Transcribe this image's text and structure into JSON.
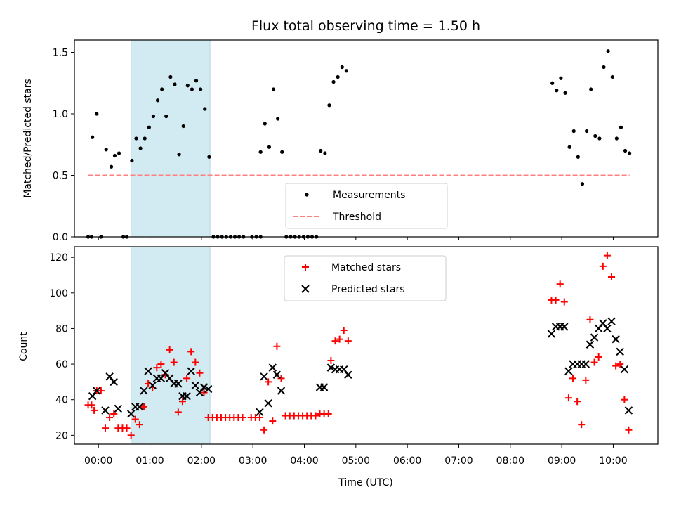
{
  "chart_data": [
    {
      "type": "scatter",
      "title": "Flux total observing time = 1.50 h",
      "xlabel": "",
      "ylabel": "Matched/Predicted stars",
      "xlim": [
        "23:32",
        "10:52"
      ],
      "ylim": [
        0,
        1.6
      ],
      "yticks": [
        "0.0",
        "0.5",
        "1.0",
        "1.5"
      ],
      "highlight_interval": [
        "00:38",
        "02:10"
      ],
      "highlight_color": "#add8e6",
      "legend_position": "lower-center",
      "series": [
        {
          "name": "Measurements",
          "marker": "dot",
          "color": "#000000",
          "points": [
            [
              "23:48",
              0
            ],
            [
              "23:52",
              0
            ],
            [
              "23:53",
              0.81
            ],
            [
              "23:58",
              1.0
            ],
            [
              "00:03",
              0
            ],
            [
              "00:09",
              0.71
            ],
            [
              "00:15",
              0.57
            ],
            [
              "00:19",
              0.66
            ],
            [
              "00:24",
              0.68
            ],
            [
              "00:29",
              0
            ],
            [
              "00:33",
              0
            ],
            [
              "00:39",
              0.62
            ],
            [
              "00:44",
              0.8
            ],
            [
              "00:49",
              0.72
            ],
            [
              "00:54",
              0.8
            ],
            [
              "00:59",
              0.89
            ],
            [
              "01:04",
              0.98
            ],
            [
              "01:09",
              1.11
            ],
            [
              "01:14",
              1.2
            ],
            [
              "01:19",
              0.98
            ],
            [
              "01:24",
              1.3
            ],
            [
              "01:29",
              1.24
            ],
            [
              "01:34",
              0.67
            ],
            [
              "01:39",
              0.9
            ],
            [
              "01:44",
              1.23
            ],
            [
              "01:49",
              1.2
            ],
            [
              "01:54",
              1.27
            ],
            [
              "01:59",
              1.2
            ],
            [
              "02:04",
              1.04
            ],
            [
              "02:09",
              0.65
            ],
            [
              "02:14",
              0
            ],
            [
              "02:19",
              0
            ],
            [
              "02:24",
              0
            ],
            [
              "02:29",
              0
            ],
            [
              "02:34",
              0
            ],
            [
              "02:39",
              0
            ],
            [
              "02:44",
              0
            ],
            [
              "02:49",
              0
            ],
            [
              "02:59",
              0
            ],
            [
              "03:04",
              0
            ],
            [
              "03:09",
              0
            ],
            [
              "03:09",
              0.69
            ],
            [
              "03:14",
              0.92
            ],
            [
              "03:19",
              0.73
            ],
            [
              "03:24",
              1.2
            ],
            [
              "03:29",
              0.96
            ],
            [
              "03:34",
              0.69
            ],
            [
              "03:39",
              0
            ],
            [
              "03:44",
              0
            ],
            [
              "03:49",
              0
            ],
            [
              "03:54",
              0
            ],
            [
              "03:59",
              0
            ],
            [
              "04:04",
              0
            ],
            [
              "04:09",
              0
            ],
            [
              "04:14",
              0
            ],
            [
              "04:19",
              0.7
            ],
            [
              "04:24",
              0.68
            ],
            [
              "04:29",
              1.07
            ],
            [
              "04:34",
              1.26
            ],
            [
              "04:39",
              1.3
            ],
            [
              "04:44",
              1.38
            ],
            [
              "04:49",
              1.35
            ],
            [
              "08:49",
              1.25
            ],
            [
              "08:54",
              1.19
            ],
            [
              "08:59",
              1.29
            ],
            [
              "09:04",
              1.17
            ],
            [
              "09:09",
              0.73
            ],
            [
              "09:14",
              0.86
            ],
            [
              "09:19",
              0.65
            ],
            [
              "09:24",
              0.43
            ],
            [
              "09:29",
              0.86
            ],
            [
              "09:34",
              1.2
            ],
            [
              "09:39",
              0.82
            ],
            [
              "09:44",
              0.8
            ],
            [
              "09:49",
              1.38
            ],
            [
              "09:54",
              1.51
            ],
            [
              "09:59",
              1.3
            ],
            [
              "10:04",
              0.8
            ],
            [
              "10:09",
              0.89
            ],
            [
              "10:14",
              0.7
            ],
            [
              "10:19",
              0.68
            ]
          ]
        },
        {
          "name": "Threshold",
          "marker": "dashed-line",
          "color": "#ff8080",
          "points": [
            [
              "23:48",
              0.5
            ],
            [
              "10:19",
              0.5
            ]
          ]
        }
      ]
    },
    {
      "type": "scatter",
      "title": "",
      "xlabel": "Time (UTC)",
      "ylabel": "Count",
      "xlim": [
        "23:32",
        "10:52"
      ],
      "ylim": [
        15,
        126
      ],
      "xticks": [
        "00:00",
        "01:00",
        "02:00",
        "03:00",
        "04:00",
        "05:00",
        "06:00",
        "07:00",
        "08:00",
        "09:00",
        "10:00"
      ],
      "yticks": [
        "20",
        "40",
        "60",
        "80",
        "100",
        "120"
      ],
      "highlight_interval": [
        "00:38",
        "02:10"
      ],
      "highlight_color": "#add8e6",
      "legend_position": "top-center",
      "series": [
        {
          "name": "Matched stars",
          "marker": "plus",
          "color": "#ff0000",
          "points": [
            [
              "23:48",
              37
            ],
            [
              "23:52",
              37
            ],
            [
              "23:55",
              34
            ],
            [
              "23:58",
              45
            ],
            [
              "00:03",
              45
            ],
            [
              "00:08",
              24
            ],
            [
              "00:13",
              30
            ],
            [
              "00:18",
              32
            ],
            [
              "00:23",
              24
            ],
            [
              "00:28",
              24
            ],
            [
              "00:33",
              24
            ],
            [
              "00:38",
              20
            ],
            [
              "00:43",
              29
            ],
            [
              "00:48",
              26
            ],
            [
              "00:53",
              36
            ],
            [
              "00:58",
              49
            ],
            [
              "01:03",
              47
            ],
            [
              "01:08",
              58
            ],
            [
              "01:13",
              60
            ],
            [
              "01:18",
              54
            ],
            [
              "01:23",
              68
            ],
            [
              "01:28",
              61
            ],
            [
              "01:33",
              33
            ],
            [
              "01:38",
              39
            ],
            [
              "01:43",
              52
            ],
            [
              "01:48",
              67
            ],
            [
              "01:53",
              61
            ],
            [
              "01:58",
              55
            ],
            [
              "02:03",
              44
            ],
            [
              "02:08",
              30
            ],
            [
              "02:13",
              30
            ],
            [
              "02:18",
              30
            ],
            [
              "02:23",
              30
            ],
            [
              "02:28",
              30
            ],
            [
              "02:33",
              30
            ],
            [
              "02:38",
              30
            ],
            [
              "02:43",
              30
            ],
            [
              "02:48",
              30
            ],
            [
              "02:58",
              30
            ],
            [
              "03:03",
              30
            ],
            [
              "03:08",
              30
            ],
            [
              "03:13",
              23
            ],
            [
              "03:18",
              50
            ],
            [
              "03:23",
              28
            ],
            [
              "03:28",
              70
            ],
            [
              "03:33",
              52
            ],
            [
              "03:38",
              31
            ],
            [
              "03:43",
              31
            ],
            [
              "03:48",
              31
            ],
            [
              "03:53",
              31
            ],
            [
              "03:58",
              31
            ],
            [
              "04:03",
              31
            ],
            [
              "04:08",
              31
            ],
            [
              "04:13",
              31
            ],
            [
              "04:18",
              32
            ],
            [
              "04:23",
              32
            ],
            [
              "04:28",
              32
            ],
            [
              "04:31",
              62
            ],
            [
              "04:36",
              73
            ],
            [
              "04:41",
              74
            ],
            [
              "04:46",
              79
            ],
            [
              "04:51",
              73
            ],
            [
              "08:48",
              96
            ],
            [
              "08:53",
              96
            ],
            [
              "08:58",
              105
            ],
            [
              "09:03",
              95
            ],
            [
              "09:08",
              41
            ],
            [
              "09:13",
              52
            ],
            [
              "09:18",
              39
            ],
            [
              "09:23",
              26
            ],
            [
              "09:28",
              51
            ],
            [
              "09:33",
              85
            ],
            [
              "09:38",
              61
            ],
            [
              "09:43",
              64
            ],
            [
              "09:48",
              115
            ],
            [
              "09:53",
              121
            ],
            [
              "09:58",
              109
            ],
            [
              "10:03",
              59
            ],
            [
              "10:08",
              60
            ],
            [
              "10:13",
              40
            ],
            [
              "10:18",
              23
            ]
          ]
        },
        {
          "name": "Predicted stars",
          "marker": "x",
          "color": "#000000",
          "points": [
            [
              "23:53",
              42
            ],
            [
              "23:58",
              45
            ],
            [
              "00:08",
              34
            ],
            [
              "00:13",
              53
            ],
            [
              "00:18",
              50
            ],
            [
              "00:23",
              35
            ],
            [
              "00:38",
              32
            ],
            [
              "00:43",
              36
            ],
            [
              "00:48",
              36
            ],
            [
              "00:53",
              45
            ],
            [
              "00:58",
              56
            ],
            [
              "01:03",
              48
            ],
            [
              "01:08",
              52
            ],
            [
              "01:13",
              52
            ],
            [
              "01:18",
              55
            ],
            [
              "01:23",
              52
            ],
            [
              "01:28",
              49
            ],
            [
              "01:33",
              49
            ],
            [
              "01:38",
              42
            ],
            [
              "01:43",
              42
            ],
            [
              "01:48",
              56
            ],
            [
              "01:53",
              48
            ],
            [
              "01:58",
              44
            ],
            [
              "02:03",
              47
            ],
            [
              "02:08",
              46
            ],
            [
              "03:08",
              33
            ],
            [
              "03:13",
              53
            ],
            [
              "03:18",
              38
            ],
            [
              "03:23",
              58
            ],
            [
              "03:28",
              54
            ],
            [
              "03:33",
              45
            ],
            [
              "04:18",
              47
            ],
            [
              "04:23",
              47
            ],
            [
              "04:31",
              58
            ],
            [
              "04:36",
              57
            ],
            [
              "04:41",
              57
            ],
            [
              "04:46",
              57
            ],
            [
              "04:51",
              54
            ],
            [
              "08:48",
              77
            ],
            [
              "08:53",
              81
            ],
            [
              "08:58",
              81
            ],
            [
              "09:03",
              81
            ],
            [
              "09:08",
              56
            ],
            [
              "09:13",
              60
            ],
            [
              "09:18",
              60
            ],
            [
              "09:23",
              60
            ],
            [
              "09:28",
              60
            ],
            [
              "09:33",
              71
            ],
            [
              "09:38",
              75
            ],
            [
              "09:43",
              80
            ],
            [
              "09:48",
              83
            ],
            [
              "09:53",
              80
            ],
            [
              "09:58",
              84
            ],
            [
              "10:03",
              74
            ],
            [
              "10:08",
              67
            ],
            [
              "10:13",
              57
            ],
            [
              "10:18",
              34
            ]
          ]
        }
      ]
    }
  ]
}
